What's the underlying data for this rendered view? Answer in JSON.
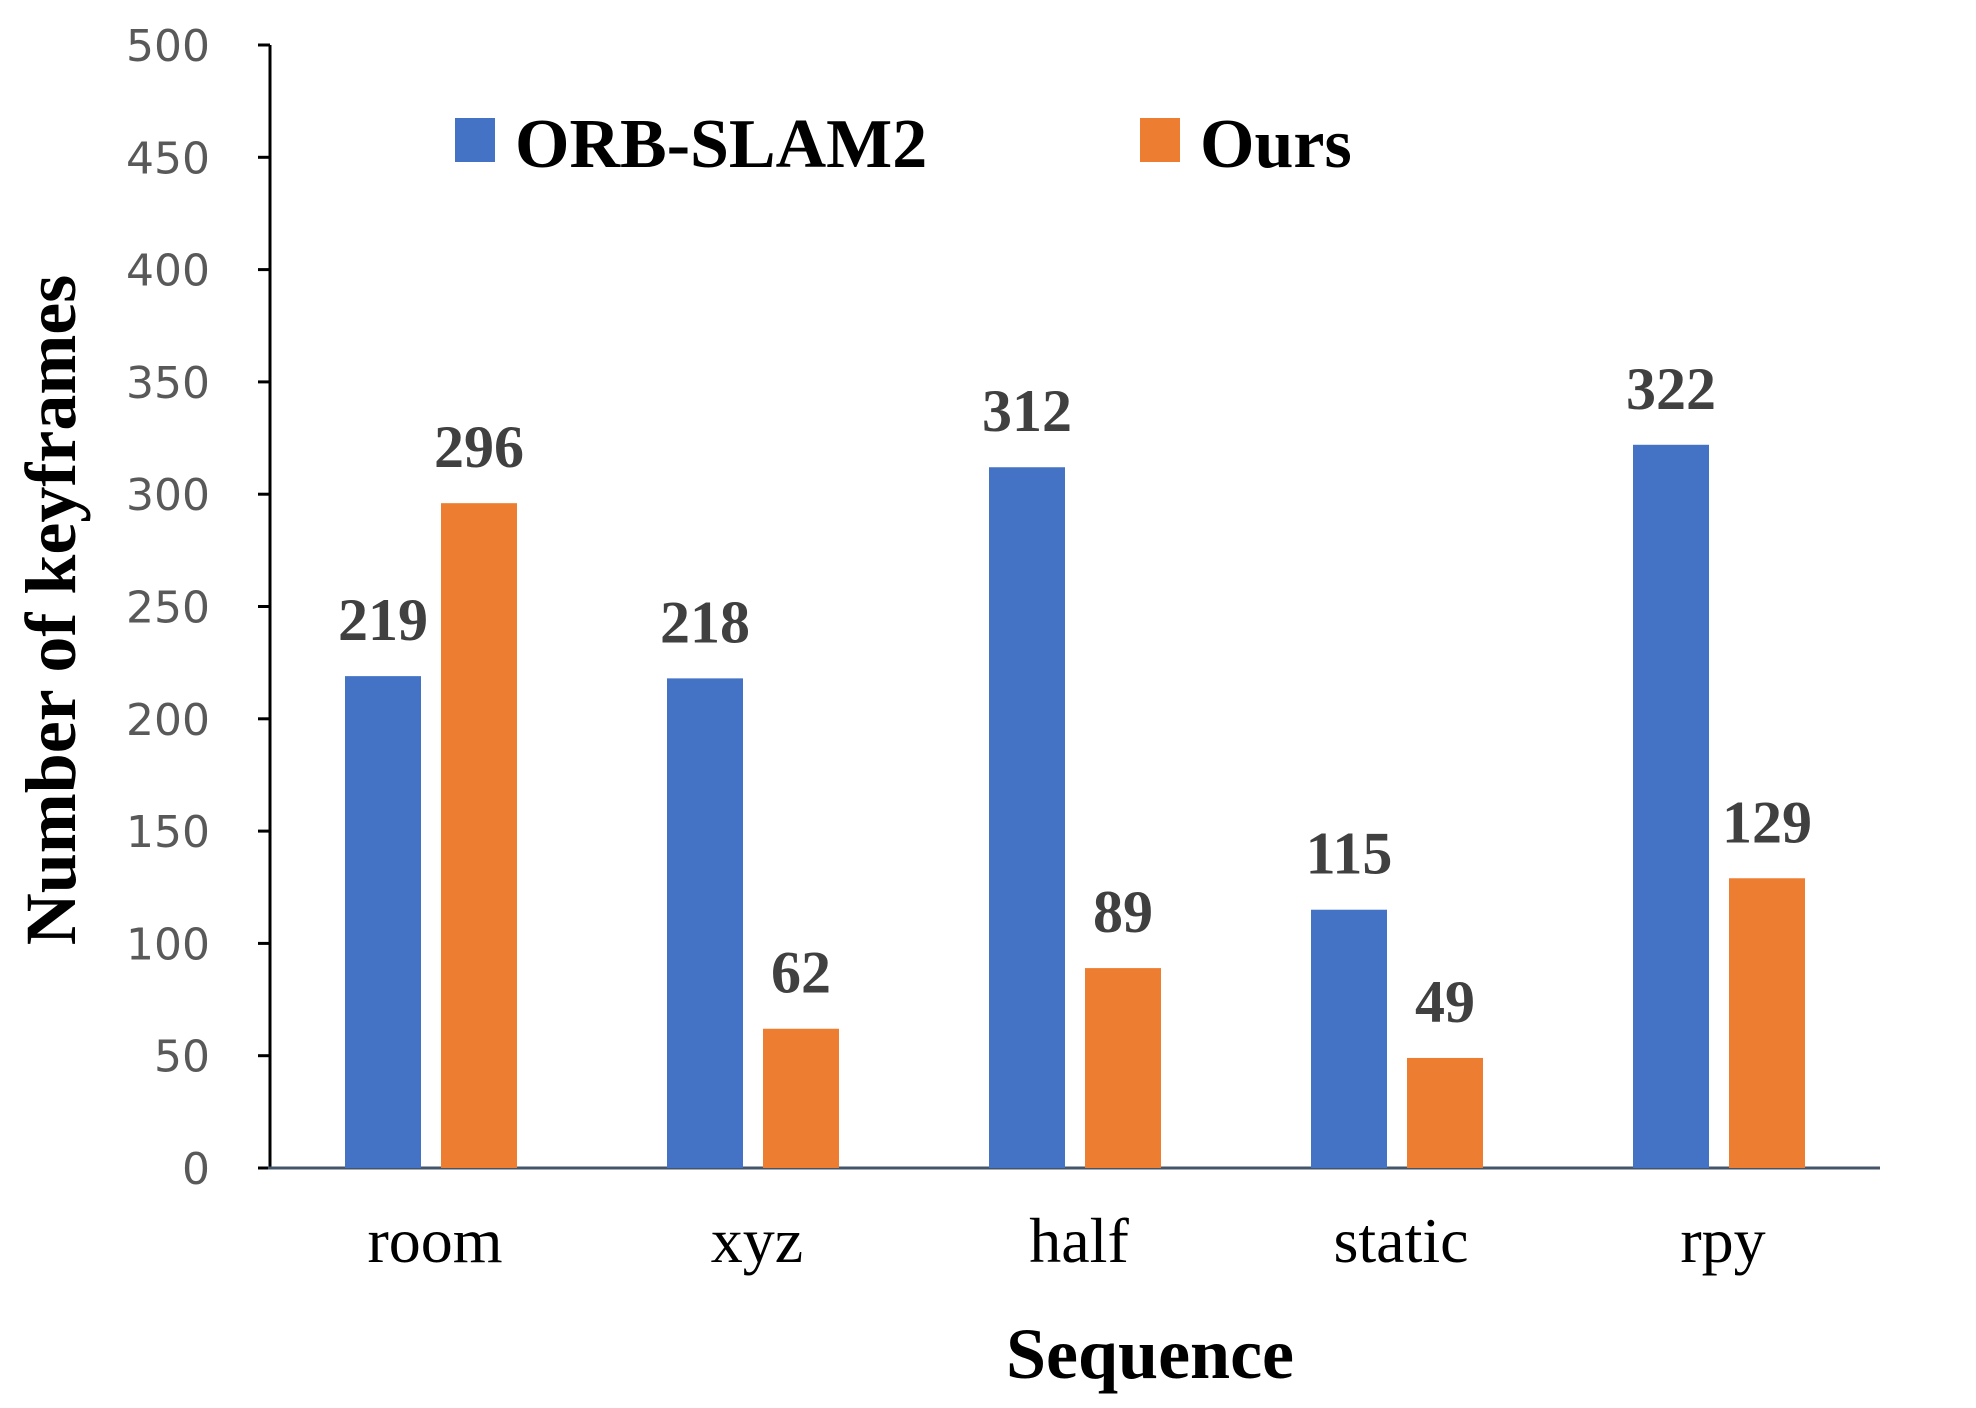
{
  "chart_data": {
    "type": "bar",
    "title": "",
    "xlabel": "Sequence",
    "ylabel": "Number of keyframes",
    "ylim": [
      0,
      500
    ],
    "yticks": [
      0,
      50,
      100,
      150,
      200,
      250,
      300,
      350,
      400,
      450,
      500
    ],
    "grid": false,
    "legend_position": "top",
    "categories": [
      "room",
      "xyz",
      "half",
      "static",
      "rpy"
    ],
    "series": [
      {
        "name": "ORB-SLAM2",
        "color": "#4472C4",
        "values": [
          219,
          218,
          312,
          115,
          322
        ]
      },
      {
        "name": "Ours",
        "color": "#ED7D31",
        "values": [
          296,
          62,
          89,
          49,
          129
        ]
      }
    ]
  }
}
